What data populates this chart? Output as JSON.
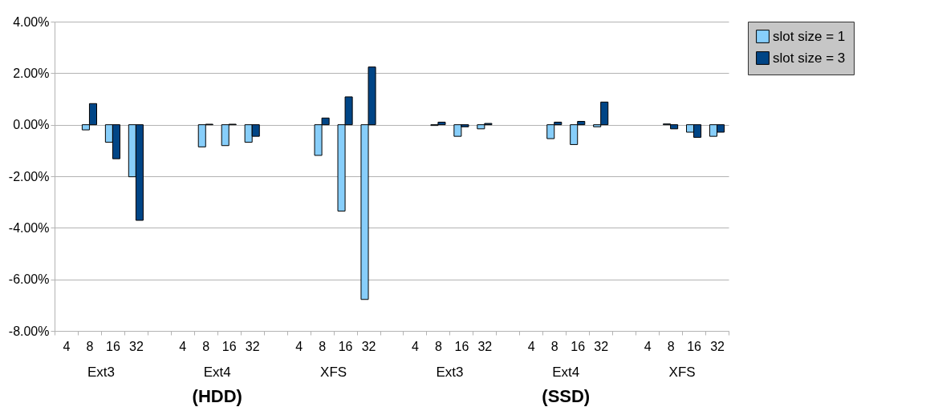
{
  "chart_data": {
    "type": "bar",
    "categories": [
      "4",
      "8",
      "16",
      "32",
      null,
      "4",
      "8",
      "16",
      "32",
      null,
      "4",
      "8",
      "16",
      "32",
      null,
      "4",
      "8",
      "16",
      "32",
      null,
      "4",
      "8",
      "16",
      "32",
      null,
      "4",
      "8",
      "16",
      "32"
    ],
    "series": [
      {
        "name": "slot size = 1",
        "color": "#87cefa",
        "values": [
          null,
          -0.2,
          -0.68,
          -2.02,
          null,
          null,
          -0.86,
          -0.81,
          -0.68,
          null,
          null,
          -1.19,
          -3.35,
          -6.78,
          null,
          null,
          -0.03,
          -0.45,
          -0.16,
          null,
          null,
          -0.54,
          -0.77,
          -0.08,
          null,
          null,
          0.03,
          -0.29,
          -0.45
        ]
      },
      {
        "name": "slot size = 3",
        "color": "#004586",
        "values": [
          null,
          0.82,
          -1.32,
          -3.71,
          null,
          null,
          0.02,
          0.02,
          -0.45,
          null,
          null,
          0.26,
          1.08,
          2.24,
          null,
          null,
          0.1,
          -0.08,
          0.05,
          null,
          null,
          0.1,
          0.13,
          0.88,
          null,
          null,
          -0.16,
          -0.49,
          -0.29
        ]
      }
    ],
    "ylim": [
      -8,
      4
    ],
    "yticks": [
      {
        "value": -8,
        "label": "-8.00%"
      },
      {
        "value": -6,
        "label": "-6.00%"
      },
      {
        "value": -4,
        "label": "-4.00%"
      },
      {
        "value": -2,
        "label": "-2.00%"
      },
      {
        "value": 0,
        "label": "0.00%"
      },
      {
        "value": 2,
        "label": "2.00%"
      },
      {
        "value": 4,
        "label": "4.00%"
      }
    ],
    "grid": "y",
    "legend": "right",
    "annotations": [
      "Ext3",
      "Ext4",
      "XFS",
      "Ext3",
      "Ext4",
      "XFS",
      "(HDD)",
      "(SSD)"
    ]
  }
}
